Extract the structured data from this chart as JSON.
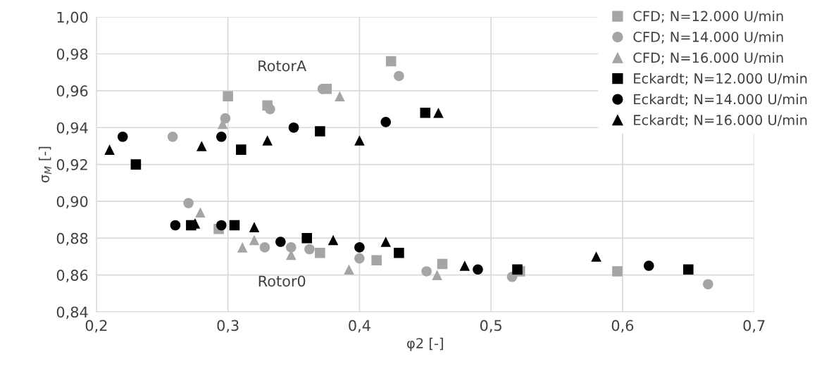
{
  "chart_data": {
    "type": "scatter",
    "xlabel": "φ2 [-]",
    "ylabel": "σ$_{M}$ [-]",
    "xlim": [
      0.2,
      0.7
    ],
    "xticks": [
      {
        "value": 0.2,
        "label": "0,2"
      },
      {
        "value": 0.3,
        "label": "0,3"
      },
      {
        "value": 0.4,
        "label": "0,4"
      },
      {
        "value": 0.5,
        "label": "0,5"
      },
      {
        "value": 0.6,
        "label": "0,6"
      },
      {
        "value": 0.7,
        "label": "0,7"
      }
    ],
    "ylim": [
      0.84,
      1.0
    ],
    "yticks": [
      {
        "value": 0.84,
        "label": "0,84"
      },
      {
        "value": 0.86,
        "label": "0,86"
      },
      {
        "value": 0.88,
        "label": "0,88"
      },
      {
        "value": 0.9,
        "label": "0,90"
      },
      {
        "value": 0.92,
        "label": "0,92"
      },
      {
        "value": 0.94,
        "label": "0,94"
      },
      {
        "value": 0.96,
        "label": "0,96"
      },
      {
        "value": 0.98,
        "label": "0,98"
      },
      {
        "value": 1.0,
        "label": "1,00"
      }
    ],
    "grid": true,
    "legend": "top right",
    "annotations": [
      "RotorA",
      "Rotor0"
    ],
    "series": [
      {
        "name": "CFD; N=12.000 U/min",
        "color": "#a5a5a5",
        "marker": "square",
        "x": [
          0.3,
          0.33,
          0.375,
          0.424,
          0.293,
          0.37,
          0.413,
          0.463,
          0.522,
          0.596
        ],
        "values": [
          0.957,
          0.952,
          0.961,
          0.976,
          0.885,
          0.872,
          0.868,
          0.866,
          0.862,
          0.862
        ]
      },
      {
        "name": "CFD; N=14.000 U/min",
        "color": "#a5a5a5",
        "marker": "circle",
        "x": [
          0.258,
          0.298,
          0.332,
          0.372,
          0.43,
          0.27,
          0.328,
          0.348,
          0.362,
          0.4,
          0.451,
          0.516,
          0.665
        ],
        "values": [
          0.935,
          0.945,
          0.95,
          0.961,
          0.968,
          0.899,
          0.875,
          0.875,
          0.874,
          0.869,
          0.862,
          0.859,
          0.855
        ]
      },
      {
        "name": "CFD; N=16.000 U/min",
        "color": "#a5a5a5",
        "marker": "triangle",
        "x": [
          0.296,
          0.385,
          0.279,
          0.311,
          0.32,
          0.348,
          0.392,
          0.459
        ],
        "values": [
          0.942,
          0.957,
          0.894,
          0.875,
          0.879,
          0.871,
          0.863,
          0.86
        ]
      },
      {
        "name": "Eckardt; N=12.000 U/min",
        "color": "#000000",
        "marker": "square",
        "x": [
          0.23,
          0.31,
          0.37,
          0.45,
          0.272,
          0.305,
          0.36,
          0.43,
          0.52,
          0.65
        ],
        "values": [
          0.92,
          0.928,
          0.938,
          0.948,
          0.887,
          0.887,
          0.88,
          0.872,
          0.863,
          0.863
        ]
      },
      {
        "name": "Eckardt; N=14.000 U/min",
        "color": "#000000",
        "marker": "circle",
        "x": [
          0.22,
          0.295,
          0.35,
          0.42,
          0.26,
          0.295,
          0.34,
          0.4,
          0.49,
          0.62
        ],
        "values": [
          0.935,
          0.935,
          0.94,
          0.943,
          0.887,
          0.887,
          0.878,
          0.875,
          0.863,
          0.865
        ]
      },
      {
        "name": "Eckardt; N=16.000 U/min",
        "color": "#000000",
        "marker": "triangle",
        "x": [
          0.21,
          0.28,
          0.33,
          0.4,
          0.46,
          0.275,
          0.32,
          0.38,
          0.42,
          0.48,
          0.58
        ],
        "values": [
          0.928,
          0.93,
          0.933,
          0.933,
          0.948,
          0.888,
          0.886,
          0.879,
          0.878,
          0.865,
          0.87
        ]
      }
    ]
  }
}
